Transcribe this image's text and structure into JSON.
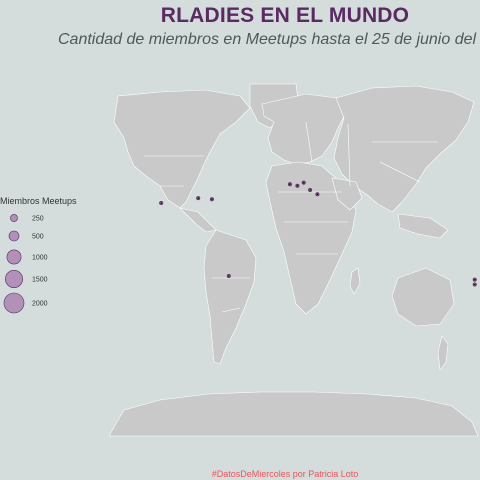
{
  "title": "RLADIES EN EL MUNDO",
  "subtitle": "Cantidad de miembros en Meetups hasta el 25 de junio del",
  "caption": "#DatosDeMiercoles por Patricia Loto",
  "colors": {
    "background": "#d4dcdc",
    "land": "#c9c9c9",
    "border": "#ffffff",
    "bubble_fill": "#a370a8",
    "bubble_stroke": "#5a2a63",
    "title": "#5a2a63",
    "caption": "#e8565a"
  },
  "legend": {
    "title": "Miembros Meetups",
    "items": [
      {
        "label": "250",
        "members": 250
      },
      {
        "label": "500",
        "members": 500
      },
      {
        "label": "1000",
        "members": 1000
      },
      {
        "label": "1500",
        "members": 1500
      },
      {
        "label": "2000",
        "members": 2000
      }
    ]
  },
  "meetups": [
    {
      "region": "north-america-west",
      "lon": -122,
      "lat": 37,
      "members": 10
    },
    {
      "region": "north-america-midwest",
      "lon": -87,
      "lat": 41,
      "members": 8
    },
    {
      "region": "north-america-east",
      "lon": -74,
      "lat": 40,
      "members": 40
    },
    {
      "region": "south-america",
      "lon": -58,
      "lat": -34,
      "members": 50
    },
    {
      "region": "europe-west",
      "lon": -0.1,
      "lat": 51,
      "members": 10
    },
    {
      "region": "europe-central-a",
      "lon": 7,
      "lat": 50,
      "members": 15
    },
    {
      "region": "europe-central-b",
      "lon": 13,
      "lat": 52,
      "members": 8
    },
    {
      "region": "europe-south",
      "lon": 19,
      "lat": 47,
      "members": 12
    },
    {
      "region": "europe-east",
      "lon": 26,
      "lat": 44,
      "members": 35
    },
    {
      "region": "oceania-a",
      "lon": 175,
      "lat": -37,
      "members": 30
    },
    {
      "region": "oceania-b",
      "lon": 175,
      "lat": -41,
      "members": 25
    }
  ]
}
